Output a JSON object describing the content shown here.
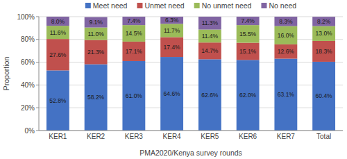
{
  "chart_data": {
    "type": "bar",
    "stacked": true,
    "data_labels": true,
    "legend": "top",
    "grid": true,
    "x_label": "PMA2020/Kenya survey rounds",
    "y_label": "Proportion",
    "categories": [
      "KER1",
      "KER2",
      "KER3",
      "KER4",
      "KER5",
      "KER6",
      "KER7",
      "Total"
    ],
    "ylim": [
      0,
      100
    ],
    "yticks": [
      {
        "value": 0,
        "label": "0%"
      },
      {
        "value": 20,
        "label": "20%"
      },
      {
        "value": 40,
        "label": "40%"
      },
      {
        "value": 60,
        "label": "60%"
      },
      {
        "value": 80,
        "label": "80%"
      },
      {
        "value": 100,
        "label": "100%"
      }
    ],
    "series": [
      {
        "name": "Meet need",
        "color": "#4472c4",
        "values": [
          52.8,
          58.2,
          61.0,
          64.6,
          62.6,
          62.0,
          63.1,
          60.4
        ],
        "value_labels": [
          "52.8%",
          "58.2%",
          "61.0%",
          "64.6%",
          "62.6%",
          "62.0%",
          "63.1%",
          "60.4%"
        ]
      },
      {
        "name": "Unmet need",
        "color": "#c0504d",
        "values": [
          27.6,
          21.3,
          17.1,
          17.4,
          14.7,
          15.1,
          12.6,
          18.3
        ],
        "value_labels": [
          "27.6%",
          "21.3%",
          "17.1%",
          "17.4%",
          "14.7%",
          "15.1%",
          "12.6%",
          "18.3%"
        ]
      },
      {
        "name": "No unmet need",
        "color": "#9bbb59",
        "values": [
          11.6,
          11.0,
          14.5,
          11.7,
          11.4,
          15.5,
          16.0,
          13.0
        ],
        "value_labels": [
          "11.6%",
          "11.0%",
          "14.5%",
          "11.7%",
          "11.4%",
          "15.5%",
          "16.0%",
          "13.0%"
        ]
      },
      {
        "name": "No need",
        "color": "#8064a2",
        "values": [
          8.0,
          9.1,
          7.4,
          6.3,
          11.3,
          7.4,
          8.3,
          8.2
        ],
        "value_labels": [
          "8.0%",
          "9.1%",
          "7.4%",
          "6.3%",
          "11.3%",
          "7.4%",
          "8.3%",
          "8.2%"
        ]
      }
    ]
  }
}
